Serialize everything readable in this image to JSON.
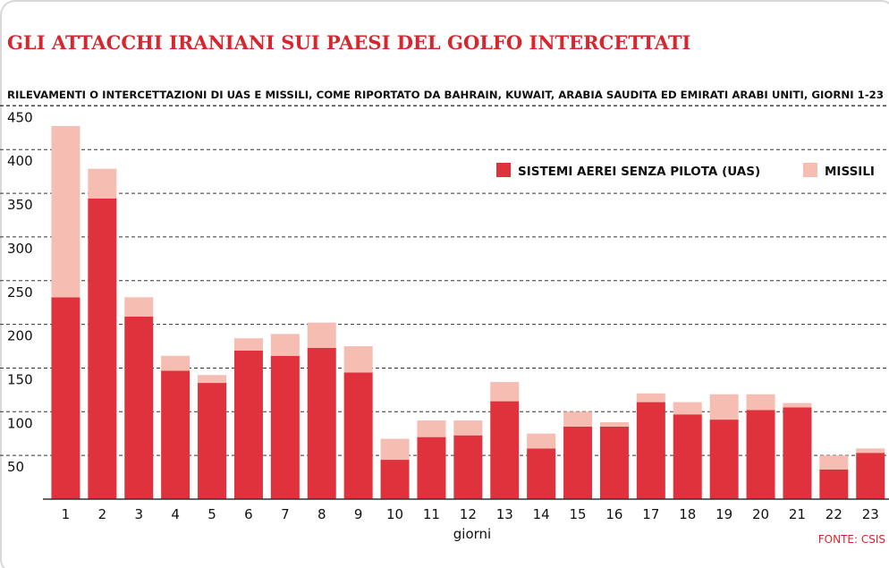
{
  "chart_data": {
    "type": "stacked_bar",
    "title": "GLI ATTACCHI IRANIANI SUI PAESI DEL GOLFO INTERCETTATI",
    "subtitle": "RILEVAMENTI O INTERCETTAZIONI DI UAS E MISSILI, COME RIPORTATO DA BAHRAIN, KUWAIT, ARABIA SAUDITA ED EMIRATI ARABI UNITI, GIORNI 1-23",
    "x_label": "giorni",
    "source": "FONTE: CSIS",
    "categories": [
      "1",
      "2",
      "3",
      "4",
      "5",
      "6",
      "7",
      "8",
      "9",
      "10",
      "11",
      "12",
      "13",
      "14",
      "15",
      "16",
      "17",
      "18",
      "19",
      "20",
      "21",
      "22",
      "23"
    ],
    "series": [
      {
        "name": "SISTEMI AEREI SENZA PILOTA (UAS)",
        "color": "#e0323c",
        "values": [
          231,
          344,
          209,
          147,
          133,
          170,
          164,
          173,
          145,
          45,
          71,
          73,
          112,
          58,
          83,
          83,
          111,
          97,
          91,
          102,
          105,
          34,
          53
        ]
      },
      {
        "name": "MISSILI",
        "color": "#f6bdb3",
        "values": [
          196,
          34,
          22,
          17,
          9,
          14,
          25,
          29,
          30,
          24,
          19,
          17,
          22,
          17,
          17,
          5,
          10,
          14,
          29,
          18,
          5,
          16,
          5
        ]
      }
    ],
    "ylim": [
      0,
      460
    ],
    "yticks": [
      50,
      100,
      150,
      200,
      250,
      300,
      350,
      400,
      450
    ],
    "grid": true,
    "legend": "top-right"
  }
}
